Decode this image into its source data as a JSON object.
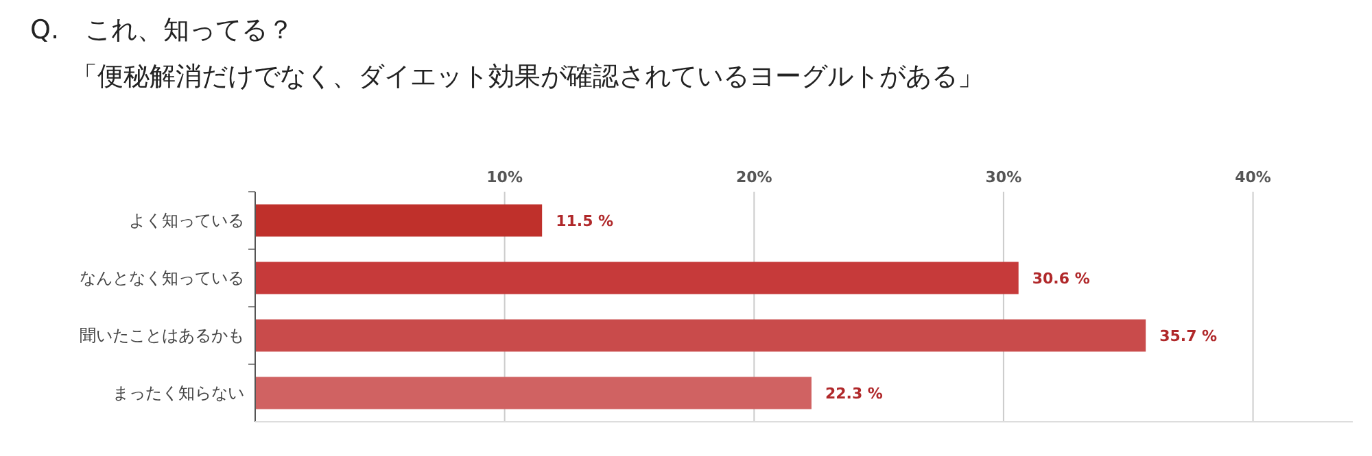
{
  "chart_data": {
    "type": "bar",
    "orientation": "horizontal",
    "title": "Q.　これ、知ってる？",
    "subtitle": "「便秘解消だけでなく、ダイエット効果が確認されているヨーグルトがある」",
    "categories": [
      "よく知っている",
      "なんとなく知っている",
      "聞いたことはあるかも",
      "まったく知らない"
    ],
    "values": [
      11.5,
      30.6,
      35.7,
      22.3
    ],
    "colors": [
      "#bf302b",
      "#c63a3a",
      "#c94b4b",
      "#d06262"
    ],
    "value_labels": [
      "11.5 %",
      "30.6 %",
      "35.7 %",
      "22.3 %"
    ],
    "xlim": [
      0,
      44
    ],
    "xticks": [
      {
        "value": 10,
        "label": "10%"
      },
      {
        "value": 20,
        "label": "20%"
      },
      {
        "value": 30,
        "label": "30%"
      },
      {
        "value": 40,
        "label": "40%"
      }
    ],
    "grid": "x"
  }
}
